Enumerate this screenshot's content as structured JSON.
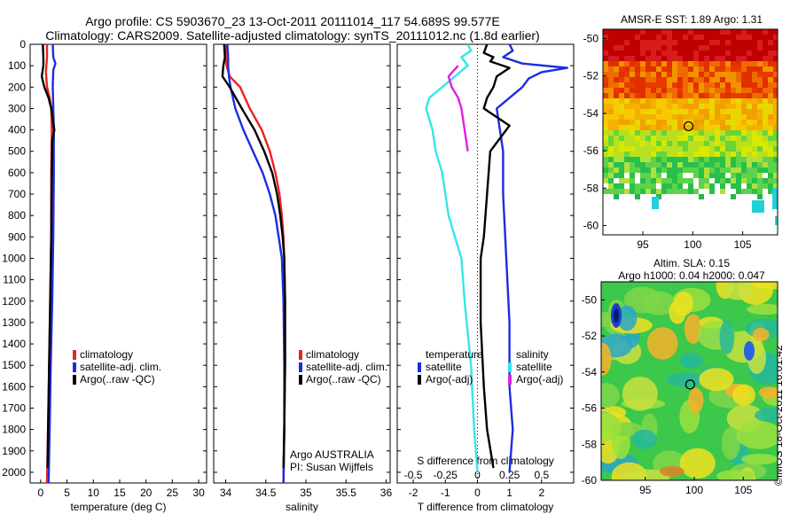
{
  "header": {
    "line1": "Argo profile: CS 5903670_23 13-Oct-2011 20111014_117 54.689S 99.577E",
    "line2": "Climatology: CARS2009. Satellite-adjusted climatology: synTS_20111012.nc (1.8d earlier)"
  },
  "colors": {
    "climatology": "#e8231f",
    "satellite": "#1d2de0",
    "argo": "#000000",
    "satellite_s": "#33e6ea",
    "argo_s": "#e020e0"
  },
  "depth_axis": {
    "ticks": [
      "0",
      "100",
      "200",
      "300",
      "400",
      "500",
      "600",
      "700",
      "800",
      "900",
      "1000",
      "1100",
      "1200",
      "1300",
      "1400",
      "1500",
      "1600",
      "1700",
      "1800",
      "1900",
      "2000"
    ]
  },
  "chart_data": [
    {
      "type": "line",
      "panel": "temperature",
      "xlabel": "temperature (deg C)",
      "xlim": [
        -2,
        31.5
      ],
      "ylim": [
        2050,
        0
      ],
      "xticks": [
        "0",
        "5",
        "10",
        "15",
        "20",
        "25",
        "30"
      ],
      "legend": [
        "climatology",
        "satellite-adj. clim.",
        "Argo(..raw -QC)"
      ],
      "series": [
        {
          "name": "climatology",
          "color": "#e8231f",
          "points": [
            [
              1.2,
              0
            ],
            [
              1.2,
              60
            ],
            [
              1.0,
              130
            ],
            [
              1.2,
              200
            ],
            [
              1.7,
              250
            ],
            [
              2.0,
              300
            ],
            [
              2.1,
              400
            ],
            [
              2.0,
              600
            ],
            [
              2.0,
              900
            ],
            [
              1.8,
              1200
            ],
            [
              1.6,
              1500
            ],
            [
              1.4,
              1800
            ],
            [
              1.2,
              2050
            ]
          ]
        },
        {
          "name": "satellite-adj. clim.",
          "color": "#1d2de0",
          "points": [
            [
              2.3,
              0
            ],
            [
              2.4,
              60
            ],
            [
              2.8,
              90
            ],
            [
              2.4,
              120
            ],
            [
              2.3,
              200
            ],
            [
              2.4,
              300
            ],
            [
              2.5,
              400
            ],
            [
              2.5,
              600
            ],
            [
              2.4,
              900
            ],
            [
              2.2,
              1200
            ],
            [
              1.9,
              1500
            ],
            [
              1.7,
              1800
            ],
            [
              1.5,
              2050
            ]
          ]
        },
        {
          "name": "Argo(..raw -QC)",
          "color": "#000000",
          "points": [
            [
              0.4,
              0
            ],
            [
              0.5,
              60
            ],
            [
              0.5,
              100
            ],
            [
              0.2,
              150
            ],
            [
              0.7,
              200
            ],
            [
              1.5,
              250
            ],
            [
              2.0,
              300
            ],
            [
              2.3,
              350
            ],
            [
              2.6,
              400
            ],
            [
              2.2,
              450
            ],
            [
              2.1,
              600
            ],
            [
              2.0,
              900
            ],
            [
              1.8,
              1200
            ],
            [
              1.6,
              1500
            ],
            [
              1.4,
              1800
            ],
            [
              1.3,
              1980
            ]
          ]
        }
      ]
    },
    {
      "type": "line",
      "panel": "salinity",
      "xlabel": "salinity",
      "xlim": [
        33.85,
        36.05
      ],
      "ylim": [
        2050,
        0
      ],
      "xticks": [
        "34",
        "34.5",
        "35",
        "35.5",
        "36"
      ],
      "legend": [
        "climatology",
        "satellite-adj. clim.",
        "Argo(..raw -QC)"
      ],
      "caption": [
        "Argo AUSTRALIA",
        "PI: Susan Wijffels"
      ],
      "series": [
        {
          "name": "climatology",
          "color": "#e8231f",
          "points": [
            [
              34.0,
              0
            ],
            [
              34.0,
              60
            ],
            [
              34.01,
              100
            ],
            [
              34.05,
              150
            ],
            [
              34.18,
              200
            ],
            [
              34.3,
              300
            ],
            [
              34.45,
              400
            ],
            [
              34.55,
              500
            ],
            [
              34.62,
              600
            ],
            [
              34.67,
              700
            ],
            [
              34.7,
              800
            ],
            [
              34.72,
              900
            ],
            [
              34.73,
              1000
            ],
            [
              34.74,
              1200
            ],
            [
              34.74,
              1500
            ],
            [
              34.73,
              1800
            ],
            [
              34.72,
              2050
            ]
          ]
        },
        {
          "name": "satellite-adj. clim.",
          "color": "#1d2de0",
          "points": [
            [
              34.02,
              0
            ],
            [
              34.03,
              60
            ],
            [
              34.03,
              100
            ],
            [
              34.04,
              150
            ],
            [
              34.06,
              200
            ],
            [
              34.12,
              300
            ],
            [
              34.22,
              400
            ],
            [
              34.34,
              500
            ],
            [
              34.46,
              600
            ],
            [
              34.55,
              700
            ],
            [
              34.62,
              800
            ],
            [
              34.66,
              900
            ],
            [
              34.7,
              1000
            ],
            [
              34.72,
              1200
            ],
            [
              34.73,
              1500
            ],
            [
              34.73,
              1800
            ],
            [
              34.72,
              2050
            ]
          ]
        },
        {
          "name": "Argo(..raw -QC)",
          "color": "#000000",
          "points": [
            [
              33.98,
              0
            ],
            [
              33.99,
              60
            ],
            [
              33.97,
              100
            ],
            [
              33.96,
              150
            ],
            [
              34.05,
              200
            ],
            [
              34.2,
              300
            ],
            [
              34.36,
              400
            ],
            [
              34.48,
              500
            ],
            [
              34.58,
              600
            ],
            [
              34.64,
              700
            ],
            [
              34.68,
              800
            ],
            [
              34.71,
              900
            ],
            [
              34.73,
              1000
            ],
            [
              34.74,
              1200
            ],
            [
              34.74,
              1500
            ],
            [
              34.73,
              1800
            ],
            [
              34.72,
              1980
            ]
          ]
        }
      ]
    },
    {
      "type": "line",
      "panel": "difference",
      "xlabel": "T difference from climatology",
      "xlabel_top": "S difference from climatology",
      "xlim": [
        -2.5,
        3.0
      ],
      "ylim": [
        2050,
        0
      ],
      "xticks": [
        "-2",
        "-1",
        "0",
        "1",
        "2"
      ],
      "xticks_top": [
        "-0.5",
        "-0.25",
        "0",
        "0.25",
        "0.5"
      ],
      "legend_headers": [
        "temperature",
        "salinity"
      ],
      "legend": [
        "satellite",
        "Argo(-adj)",
        "satellite",
        "Argo(-adj)"
      ],
      "series": [
        {
          "name": "satellite",
          "color": "#1d2de0",
          "points": [
            [
              1.0,
              0
            ],
            [
              1.1,
              30
            ],
            [
              0.8,
              60
            ],
            [
              1.4,
              90
            ],
            [
              2.8,
              110
            ],
            [
              2.0,
              130
            ],
            [
              1.6,
              160
            ],
            [
              1.4,
              200
            ],
            [
              1.0,
              250
            ],
            [
              0.6,
              300
            ],
            [
              0.7,
              400
            ],
            [
              0.8,
              500
            ],
            [
              0.8,
              700
            ],
            [
              0.9,
              1000
            ],
            [
              1.0,
              1300
            ],
            [
              1.0,
              1600
            ],
            [
              1.1,
              1800
            ],
            [
              1.0,
              2000
            ]
          ]
        },
        {
          "name": "Argo(-adj)",
          "color": "#000000",
          "points": [
            [
              0.3,
              0
            ],
            [
              0.2,
              40
            ],
            [
              0.5,
              60
            ],
            [
              0.4,
              80
            ],
            [
              1.0,
              110
            ],
            [
              0.6,
              150
            ],
            [
              0.5,
              200
            ],
            [
              0.3,
              250
            ],
            [
              0.2,
              300
            ],
            [
              1.0,
              380
            ],
            [
              0.8,
              420
            ],
            [
              0.4,
              500
            ],
            [
              0.3,
              700
            ],
            [
              0.2,
              900
            ],
            [
              0.1,
              1000
            ],
            [
              0.1,
              1300
            ],
            [
              0.2,
              1600
            ],
            [
              0.3,
              1800
            ],
            [
              0.5,
              1980
            ]
          ]
        },
        {
          "name": "satellite",
          "color": "#33e6ea",
          "points": [
            [
              -0.3,
              0
            ],
            [
              -0.2,
              30
            ],
            [
              -0.5,
              60
            ],
            [
              -0.3,
              100
            ],
            [
              -0.7,
              150
            ],
            [
              -1.5,
              250
            ],
            [
              -1.6,
              300
            ],
            [
              -1.4,
              400
            ],
            [
              -1.3,
              500
            ],
            [
              -1.1,
              600
            ],
            [
              -1.0,
              700
            ],
            [
              -0.9,
              800
            ],
            [
              -0.7,
              900
            ],
            [
              -0.5,
              1000
            ],
            [
              -0.4,
              1200
            ],
            [
              -0.2,
              1500
            ],
            [
              -0.1,
              1800
            ],
            [
              0.0,
              2000
            ]
          ]
        },
        {
          "name": "Argo(-adj)",
          "color": "#e020e0",
          "points": [
            [
              -0.6,
              100
            ],
            [
              -0.9,
              150
            ],
            [
              -0.8,
              200
            ],
            [
              -0.6,
              250
            ],
            [
              -0.5,
              300
            ],
            [
              -0.4,
              400
            ],
            [
              -0.3,
              500
            ]
          ]
        }
      ]
    },
    {
      "type": "heatmap",
      "panel": "sst-map",
      "title": "AMSR-E SST: 1.89  Argo: 1.31",
      "xlim": [
        91,
        108.5
      ],
      "ylim": [
        -60.5,
        -49.5
      ],
      "xticks": [
        "95",
        "100",
        "105"
      ],
      "yticks": [
        "-50",
        "-52",
        "-54",
        "-56",
        "-58",
        "-60"
      ],
      "marker": [
        99.577,
        -54.689
      ]
    },
    {
      "type": "heatmap",
      "panel": "sla-map",
      "title_line1": "Altim. SLA: 0.15",
      "title_line2": "Argo h1000: 0.04 h2000: 0.047",
      "xlim": [
        90.5,
        108.5
      ],
      "ylim": [
        -60,
        -49
      ],
      "xticks": [
        "95",
        "100",
        "105"
      ],
      "yticks": [
        "-50",
        "-52",
        "-54",
        "-56",
        "-58",
        "-60"
      ],
      "marker": [
        99.577,
        -54.689
      ]
    }
  ],
  "credit": "©IMOS 18-Oct-2011 16:01:42"
}
